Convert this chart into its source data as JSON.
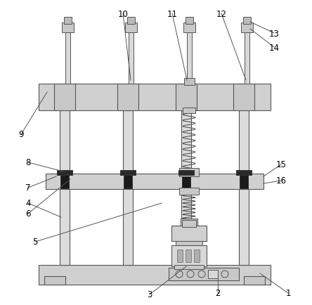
{
  "background_color": "#ffffff",
  "line_color": "#555555",
  "label_color": "#000000",
  "fig_width": 4.44,
  "fig_height": 4.35,
  "label_fontsize": 8.5
}
